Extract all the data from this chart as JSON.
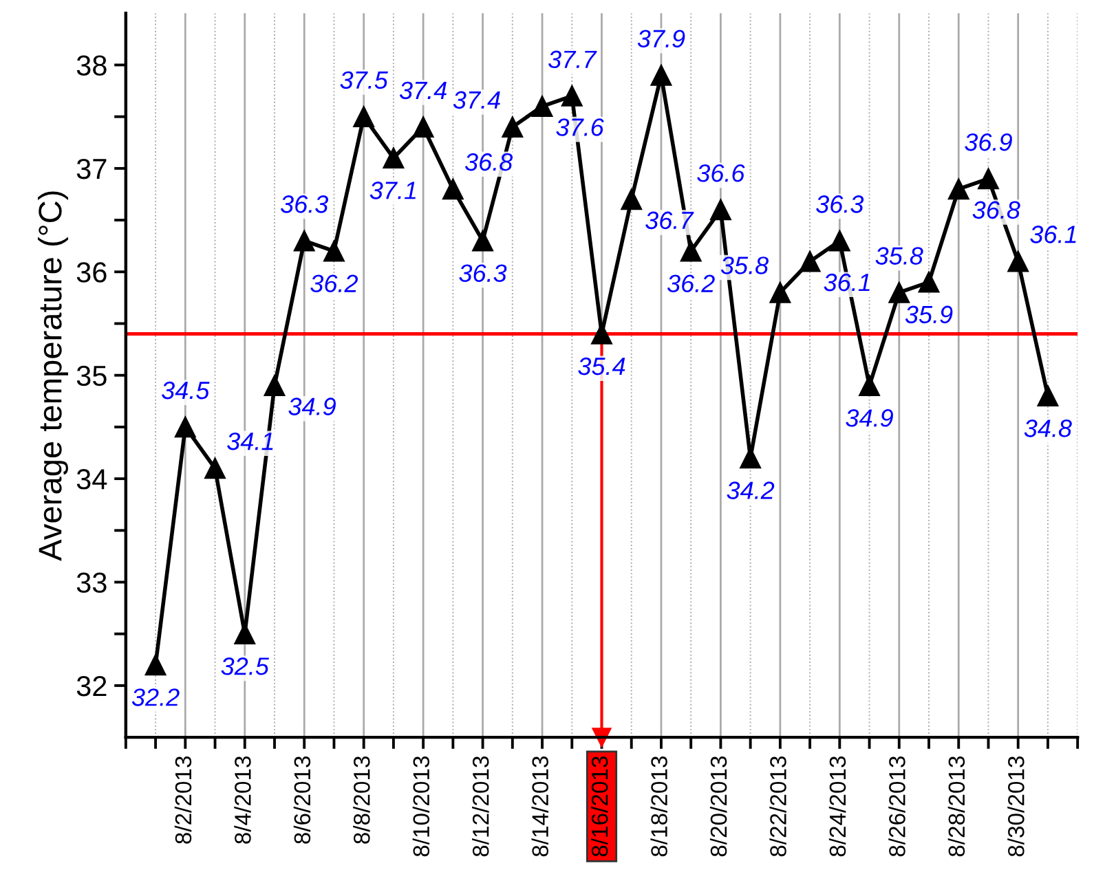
{
  "chart_data": {
    "type": "line",
    "ylabel": "Average temperature (°C)",
    "x": [
      "2013-08-01",
      "2013-08-02",
      "2013-08-03",
      "2013-08-04",
      "2013-08-05",
      "2013-08-06",
      "2013-08-07",
      "2013-08-08",
      "2013-08-09",
      "2013-08-10",
      "2013-08-11",
      "2013-08-12",
      "2013-08-13",
      "2013-08-14",
      "2013-08-15",
      "2013-08-16",
      "2013-08-17",
      "2013-08-18",
      "2013-08-19",
      "2013-08-20",
      "2013-08-21",
      "2013-08-22",
      "2013-08-23",
      "2013-08-24",
      "2013-08-25",
      "2013-08-26",
      "2013-08-27",
      "2013-08-28",
      "2013-08-29",
      "2013-08-30",
      "2013-08-31"
    ],
    "series": [
      {
        "color": "#000000",
        "values": [
          32.2,
          34.5,
          34.1,
          32.5,
          34.9,
          36.3,
          36.2,
          37.5,
          37.1,
          37.4,
          36.8,
          36.3,
          37.4,
          37.6,
          37.7,
          35.4,
          36.7,
          37.9,
          36.2,
          36.6,
          34.2,
          35.8,
          36.1,
          36.3,
          34.9,
          35.8,
          35.9,
          36.8,
          36.9,
          36.1,
          34.8
        ]
      }
    ],
    "marker": "triangle",
    "line_style": "solid",
    "data_labels": true,
    "xlim": [
      "2013-07-31",
      "2013-09-01"
    ],
    "xticks": [
      {
        "value": "2013-07-31",
        "label": null
      },
      {
        "value": "2013-08-01",
        "label": null
      },
      {
        "value": "2013-08-02",
        "label": "8/2/2013"
      },
      {
        "value": "2013-08-03",
        "label": null
      },
      {
        "value": "2013-08-04",
        "label": "8/4/2013"
      },
      {
        "value": "2013-08-05",
        "label": null
      },
      {
        "value": "2013-08-06",
        "label": "8/6/2013"
      },
      {
        "value": "2013-08-07",
        "label": null
      },
      {
        "value": "2013-08-08",
        "label": "8/8/2013"
      },
      {
        "value": "2013-08-09",
        "label": null
      },
      {
        "value": "2013-08-10",
        "label": "8/10/2013"
      },
      {
        "value": "2013-08-11",
        "label": null
      },
      {
        "value": "2013-08-12",
        "label": "8/12/2013"
      },
      {
        "value": "2013-08-13",
        "label": null
      },
      {
        "value": "2013-08-14",
        "label": "8/14/2013"
      },
      {
        "value": "2013-08-15",
        "label": null
      },
      {
        "value": "2013-08-16",
        "label": "8/16/2013"
      },
      {
        "value": "2013-08-17",
        "label": null
      },
      {
        "value": "2013-08-18",
        "label": "8/18/2013"
      },
      {
        "value": "2013-08-19",
        "label": null
      },
      {
        "value": "2013-08-20",
        "label": "8/20/2013"
      },
      {
        "value": "2013-08-21",
        "label": null
      },
      {
        "value": "2013-08-22",
        "label": "8/22/2013"
      },
      {
        "value": "2013-08-23",
        "label": null
      },
      {
        "value": "2013-08-24",
        "label": "8/24/2013"
      },
      {
        "value": "2013-08-25",
        "label": null
      },
      {
        "value": "2013-08-26",
        "label": "8/26/2013"
      },
      {
        "value": "2013-08-27",
        "label": null
      },
      {
        "value": "2013-08-28",
        "label": "8/28/2013"
      },
      {
        "value": "2013-08-29",
        "label": null
      },
      {
        "value": "2013-08-30",
        "label": "8/30/2013"
      },
      {
        "value": "2013-08-31",
        "label": null
      },
      {
        "value": "2013-09-01",
        "label": null
      }
    ],
    "ylim": [
      31.5,
      38.5
    ],
    "yticks": [
      32,
      {
        "value": 32.5,
        "label": null
      },
      33,
      {
        "value": 33.5,
        "label": null
      },
      34,
      {
        "value": 34.5,
        "label": null
      },
      35,
      {
        "value": 35.5,
        "label": null
      },
      36,
      {
        "value": 36.5,
        "label": null
      },
      37,
      {
        "value": 37.5,
        "label": null
      },
      38
    ],
    "grid": "x",
    "ref_lines": [
      {
        "axis": "y",
        "value": 35.4,
        "color": "#ff0000"
      },
      {
        "axis": "x",
        "value": "2013-08-16",
        "color": "#ff0000"
      }
    ]
  }
}
